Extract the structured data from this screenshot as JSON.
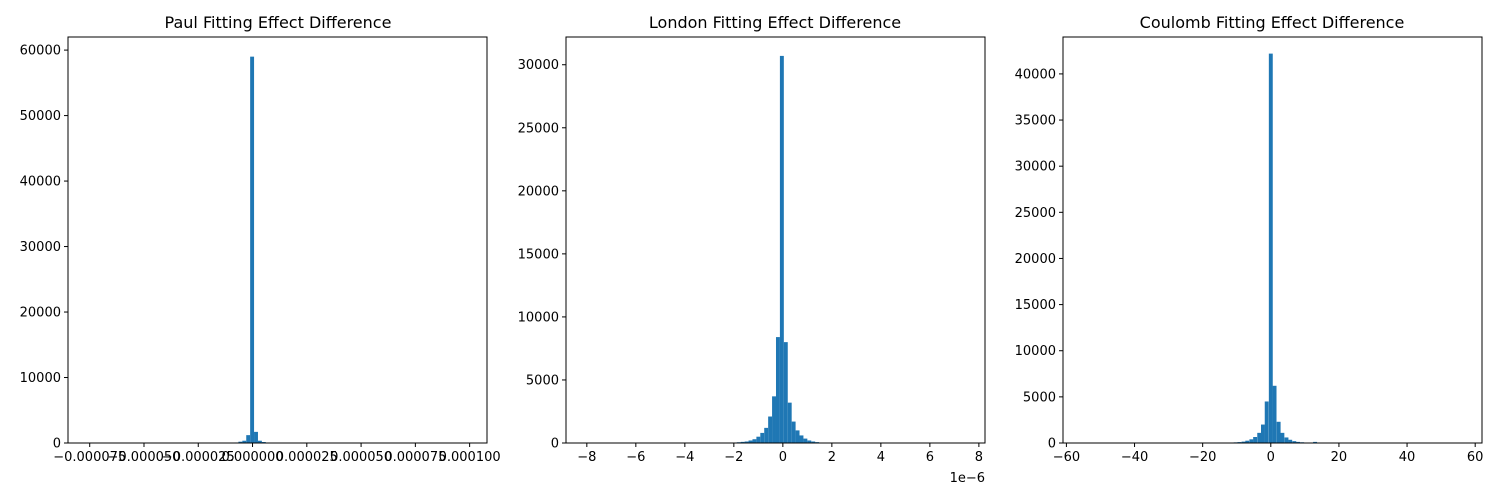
{
  "figure": {
    "panels": [
      {
        "title": "Paul Fitting Effect Difference"
      },
      {
        "title": "London Fitting Effect Difference"
      },
      {
        "title": "Coulomb Fitting Effect Difference"
      }
    ]
  },
  "colors": {
    "bar": "#1f77b4",
    "axis": "#000000",
    "background": "#ffffff"
  },
  "chart_data": [
    {
      "type": "bar",
      "title": "Paul Fitting Effect Difference",
      "xlabel": "",
      "ylabel": "",
      "xlim": [
        -8.5e-05,
        0.000108
      ],
      "ylim": [
        0,
        62000
      ],
      "x_ticks": [
        -7.5e-05,
        -5e-05,
        -2.5e-05,
        0.0,
        2.5e-05,
        5e-05,
        7.5e-05,
        0.0001
      ],
      "x_tick_labels": [
        "−0.000075",
        "−0.000050",
        "−0.000025",
        "0.000000",
        "0.000025",
        "0.000050",
        "0.000075",
        "0.000100"
      ],
      "y_ticks": [
        0,
        10000,
        20000,
        30000,
        40000,
        50000,
        60000
      ],
      "y_tick_labels": [
        "0",
        "10000",
        "20000",
        "30000",
        "40000",
        "50000",
        "60000"
      ],
      "bins": {
        "start": -7.6e-05,
        "width": 1.8e-06
      },
      "bars": [
        {
          "x": -7.4e-06,
          "value": 80
        },
        {
          "x": -5.6e-06,
          "value": 200
        },
        {
          "x": -3.8e-06,
          "value": 350
        },
        {
          "x": -2e-06,
          "value": 1200
        },
        {
          "x": -2e-07,
          "value": 59000
        },
        {
          "x": 1.6e-06,
          "value": 1700
        },
        {
          "x": 3.4e-06,
          "value": 350
        },
        {
          "x": 5.2e-06,
          "value": 150
        },
        {
          "x": 7e-06,
          "value": 60
        }
      ]
    },
    {
      "type": "bar",
      "title": "London Fitting Effect Difference",
      "xlabel": "",
      "ylabel": "",
      "x_scale_label": "1e−6",
      "xlim": [
        -8.85,
        8.25
      ],
      "ylim": [
        0,
        32200
      ],
      "x_ticks": [
        -8,
        -6,
        -4,
        -2,
        0,
        2,
        4,
        6,
        8
      ],
      "x_tick_labels": [
        "−8",
        "−6",
        "−4",
        "−2",
        "0",
        "2",
        "4",
        "6",
        "8"
      ],
      "y_ticks": [
        0,
        5000,
        10000,
        15000,
        20000,
        25000,
        30000
      ],
      "y_tick_labels": [
        "0",
        "5000",
        "10000",
        "15000",
        "20000",
        "25000",
        "30000"
      ],
      "bins": {
        "start": -2.2,
        "width": 0.16
      },
      "bars": [
        {
          "x": -2.12,
          "value": 20
        },
        {
          "x": -1.96,
          "value": 40
        },
        {
          "x": -1.8,
          "value": 60
        },
        {
          "x": -1.64,
          "value": 90
        },
        {
          "x": -1.48,
          "value": 120
        },
        {
          "x": -1.32,
          "value": 200
        },
        {
          "x": -1.16,
          "value": 300
        },
        {
          "x": -1.0,
          "value": 500
        },
        {
          "x": -0.84,
          "value": 800
        },
        {
          "x": -0.68,
          "value": 1200
        },
        {
          "x": -0.52,
          "value": 2100
        },
        {
          "x": -0.36,
          "value": 3700
        },
        {
          "x": -0.2,
          "value": 8400
        },
        {
          "x": -0.04,
          "value": 30700
        },
        {
          "x": 0.12,
          "value": 8000
        },
        {
          "x": 0.28,
          "value": 3200
        },
        {
          "x": 0.44,
          "value": 1700
        },
        {
          "x": 0.6,
          "value": 1000
        },
        {
          "x": 0.76,
          "value": 600
        },
        {
          "x": 0.92,
          "value": 350
        },
        {
          "x": 1.08,
          "value": 200
        },
        {
          "x": 1.24,
          "value": 120
        },
        {
          "x": 1.4,
          "value": 70
        },
        {
          "x": 1.56,
          "value": 40
        },
        {
          "x": 1.72,
          "value": 20
        }
      ]
    },
    {
      "type": "bar",
      "title": "Coulomb Fitting Effect Difference",
      "xlabel": "",
      "ylabel": "",
      "xlim": [
        -61,
        62
      ],
      "ylim": [
        0,
        44000
      ],
      "x_ticks": [
        -60,
        -40,
        -20,
        0,
        20,
        40,
        60
      ],
      "x_tick_labels": [
        "−60",
        "−40",
        "−20",
        "0",
        "20",
        "40",
        "60"
      ],
      "y_ticks": [
        0,
        5000,
        10000,
        15000,
        20000,
        25000,
        30000,
        35000,
        40000
      ],
      "y_tick_labels": [
        "0",
        "5000",
        "10000",
        "15000",
        "20000",
        "25000",
        "30000",
        "35000",
        "40000"
      ],
      "bins": {
        "start": -12.6,
        "width": 1.15
      },
      "bars": [
        {
          "x": -11.5,
          "value": 40
        },
        {
          "x": -10.3,
          "value": 70
        },
        {
          "x": -9.2,
          "value": 100
        },
        {
          "x": -8.0,
          "value": 150
        },
        {
          "x": -6.9,
          "value": 250
        },
        {
          "x": -5.7,
          "value": 400
        },
        {
          "x": -4.6,
          "value": 650
        },
        {
          "x": -3.4,
          "value": 1100
        },
        {
          "x": -2.3,
          "value": 2000
        },
        {
          "x": -1.2,
          "value": 4500
        },
        {
          "x": 0.0,
          "value": 42200
        },
        {
          "x": 1.1,
          "value": 6200
        },
        {
          "x": 2.3,
          "value": 2300
        },
        {
          "x": 3.4,
          "value": 1100
        },
        {
          "x": 4.6,
          "value": 600
        },
        {
          "x": 5.7,
          "value": 350
        },
        {
          "x": 6.9,
          "value": 200
        },
        {
          "x": 8.0,
          "value": 120
        },
        {
          "x": 9.2,
          "value": 80
        },
        {
          "x": 10.3,
          "value": 50
        },
        {
          "x": 11.5,
          "value": 30
        },
        {
          "x": 13.0,
          "value": 120
        }
      ]
    }
  ]
}
